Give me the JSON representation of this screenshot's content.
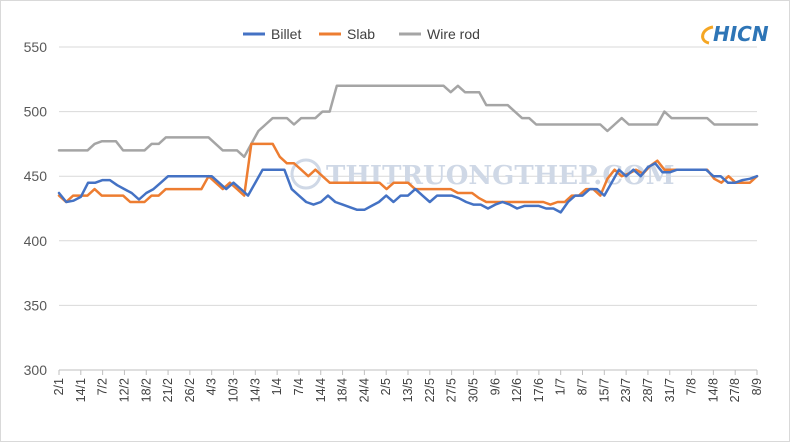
{
  "logo": {
    "text": "HICN",
    "color": "#2e75b6",
    "accent": "#f5a623"
  },
  "watermark": {
    "text": "THITRUONGTHEP.COM"
  },
  "chart_data": {
    "type": "line",
    "title": "",
    "xlabel": "",
    "ylabel": "",
    "ylim": [
      300,
      550
    ],
    "yticks": [
      300,
      350,
      400,
      450,
      500,
      550
    ],
    "grid": true,
    "legend_position": "top",
    "tick_labels": [
      "2/1",
      "14/1",
      "7/2",
      "12/2",
      "18/2",
      "21/2",
      "26/2",
      "4/3",
      "10/3",
      "14/3",
      "1/4",
      "7/4",
      "14/4",
      "18/4",
      "24/4",
      "2/5",
      "13/5",
      "22/5",
      "27/5",
      "30/5",
      "9/6",
      "12/6",
      "17/6",
      "1/7",
      "8/7",
      "15/7",
      "23/7",
      "28/7",
      "31/7",
      "7/8",
      "14/8",
      "27/8",
      "8/9"
    ],
    "series": [
      {
        "name": "Billet",
        "color": "#4472c4",
        "values": [
          437,
          430,
          431,
          434,
          445,
          445,
          447,
          447,
          443,
          440,
          437,
          432,
          437,
          440,
          445,
          450,
          450,
          450,
          450,
          450,
          450,
          450,
          445,
          440,
          445,
          440,
          435,
          445,
          455,
          455,
          455,
          455,
          440,
          435,
          430,
          428,
          430,
          435,
          430,
          428,
          426,
          424,
          424,
          427,
          430,
          435,
          430,
          435,
          435,
          440,
          435,
          430,
          435,
          435,
          435,
          433,
          430,
          428,
          428,
          425,
          428,
          430,
          428,
          425,
          427,
          427,
          427,
          425,
          425,
          422,
          430,
          435,
          435,
          440,
          440,
          435,
          445,
          455,
          450,
          455,
          450,
          457,
          460,
          453,
          453,
          455,
          455,
          455,
          455,
          455,
          450,
          450,
          445,
          445,
          447,
          448,
          450
        ]
      },
      {
        "name": "Slab",
        "color": "#ed7d31",
        "values": [
          435,
          430,
          435,
          435,
          435,
          440,
          435,
          435,
          435,
          435,
          430,
          430,
          430,
          435,
          435,
          440,
          440,
          440,
          440,
          440,
          440,
          450,
          445,
          440,
          445,
          440,
          435,
          475,
          475,
          475,
          475,
          465,
          460,
          460,
          455,
          450,
          455,
          450,
          445,
          445,
          445,
          445,
          445,
          445,
          445,
          445,
          440,
          445,
          445,
          445,
          440,
          440,
          440,
          440,
          440,
          440,
          437,
          437,
          437,
          433,
          430,
          430,
          430,
          430,
          430,
          430,
          430,
          430,
          430,
          428,
          430,
          430,
          435,
          435,
          440,
          440,
          435,
          448,
          455,
          450,
          452,
          455,
          452,
          458,
          462,
          455,
          455,
          455,
          455,
          455,
          455,
          455,
          448,
          445,
          450,
          445,
          445,
          445,
          450
        ]
      },
      {
        "name": "Wire rod",
        "color": "#a5a5a5",
        "values": [
          470,
          470,
          470,
          470,
          470,
          475,
          477,
          477,
          477,
          470,
          470,
          470,
          470,
          475,
          475,
          480,
          480,
          480,
          480,
          480,
          480,
          480,
          475,
          470,
          470,
          470,
          465,
          475,
          485,
          490,
          495,
          495,
          495,
          490,
          495,
          495,
          495,
          500,
          500,
          520,
          520,
          520,
          520,
          520,
          520,
          520,
          520,
          520,
          520,
          520,
          520,
          520,
          520,
          520,
          520,
          515,
          520,
          515,
          515,
          515,
          505,
          505,
          505,
          505,
          500,
          495,
          495,
          490,
          490,
          490,
          490,
          490,
          490,
          490,
          490,
          490,
          490,
          485,
          490,
          495,
          490,
          490,
          490,
          490,
          490,
          500,
          495,
          495,
          495,
          495,
          495,
          495,
          490,
          490,
          490,
          490,
          490,
          490,
          490
        ]
      }
    ]
  }
}
